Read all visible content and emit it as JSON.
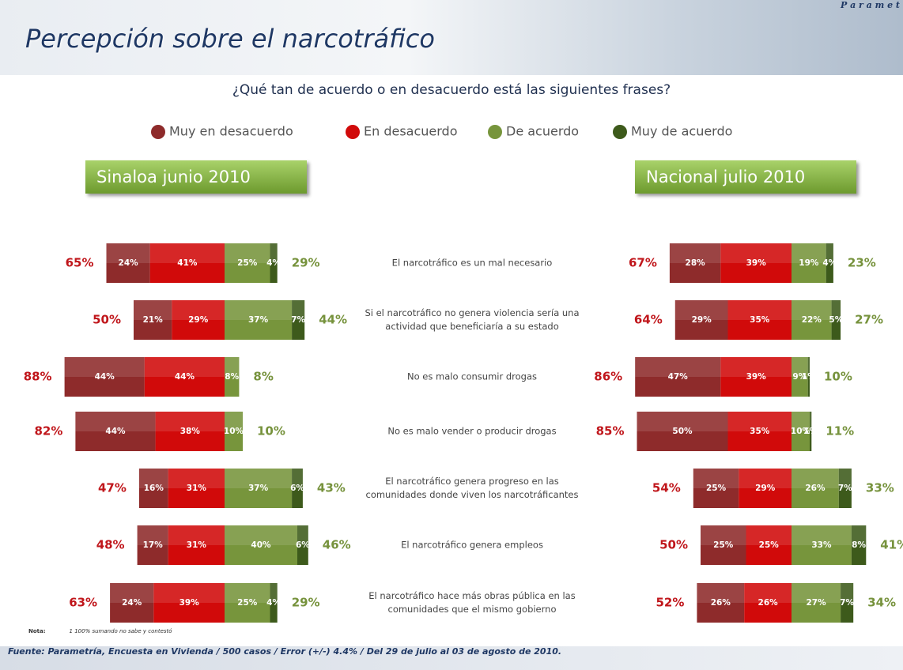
{
  "header": {
    "title": "Percepción sobre el narcotráfico",
    "logo": "P a r a m e t"
  },
  "question": "¿Qué tan de acuerdo o en desacuerdo está las siguientes frases?",
  "chart_data": [
    {
      "type": "bar",
      "title": "Sinaloa junio 2010",
      "categories": [
        "El narcotráfico es un mal necesario",
        "Si el narcotráfico no genera violencia sería una actividad que beneficiaría a su estado",
        "No es malo consumir drogas",
        "No es malo vender o producir drogas",
        "El narcotráfico genera progreso en las comunidades donde viven los narcotráficantes",
        "El narcotráfico genera empleos",
        "El narcotráfico hace más obras pública en las comunidades que el mismo gobierno"
      ],
      "series": [
        {
          "name": "Muy en desacuerdo",
          "color": "#8e2b2b",
          "values": [
            24,
            21,
            44,
            44,
            16,
            17,
            24
          ],
          "value_labels": [
            "24%",
            "21%",
            "44%",
            "44%",
            "16%",
            "17%",
            "24%"
          ]
        },
        {
          "name": "En desacuerdo",
          "color": "#d10a0a",
          "values": [
            41,
            29,
            44,
            38,
            31,
            31,
            39
          ],
          "value_labels": [
            "41%",
            "29%",
            "44%",
            "38%",
            "31%",
            "31%",
            "39%"
          ]
        },
        {
          "name": "De acuerdo",
          "color": "#77953c",
          "values": [
            25,
            37,
            8,
            10,
            37,
            40,
            25
          ],
          "value_labels": [
            "25%",
            "37%",
            "8%",
            "10%",
            "37%",
            "40%",
            "25%"
          ]
        },
        {
          "name": "Muy de acuerdo",
          "color": "#3d5a1b",
          "values": [
            4,
            7,
            0,
            0,
            6,
            6,
            4
          ],
          "value_labels": [
            "4%",
            "7%",
            null,
            null,
            "6%",
            "6%",
            "4%"
          ]
        }
      ],
      "disagree_totals": {
        "values": [
          65,
          50,
          88,
          82,
          47,
          48,
          63
        ],
        "value_labels": [
          "65%",
          "50%",
          "88%",
          "82%",
          "47%",
          "48%",
          "63%"
        ]
      },
      "agree_totals": {
        "values": [
          29,
          44,
          8,
          10,
          43,
          46,
          29
        ],
        "value_labels": [
          "29%",
          "44%",
          "8%",
          "10%",
          "43%",
          "46%",
          "29%"
        ]
      }
    },
    {
      "type": "bar",
      "title": "Nacional julio 2010",
      "series": [
        {
          "name": "Muy en desacuerdo",
          "color": "#8e2b2b",
          "values": [
            28,
            29,
            47,
            50,
            25,
            25,
            26
          ],
          "value_labels": [
            "28%",
            "29%",
            "47%",
            "50%",
            "25%",
            "25%",
            "26%"
          ]
        },
        {
          "name": "En desacuerdo",
          "color": "#d10a0a",
          "values": [
            39,
            35,
            39,
            35,
            29,
            25,
            26
          ],
          "value_labels": [
            "39%",
            "35%",
            "39%",
            "35%",
            "29%",
            "25%",
            "26%"
          ]
        },
        {
          "name": "De acuerdo",
          "color": "#77953c",
          "values": [
            19,
            22,
            9,
            10,
            26,
            33,
            27
          ],
          "value_labels": [
            "19%",
            "22%",
            "9%",
            "10%",
            "26%",
            "33%",
            "27%"
          ]
        },
        {
          "name": "Muy de acuerdo",
          "color": "#3d5a1b",
          "values": [
            4,
            5,
            1,
            1,
            7,
            8,
            7
          ],
          "value_labels": [
            "4%",
            "5%",
            "1%",
            "1%",
            "7%",
            "8%",
            "7%"
          ]
        }
      ],
      "disagree_totals": {
        "values": [
          67,
          64,
          86,
          85,
          54,
          50,
          52
        ],
        "value_labels": [
          "67%",
          "64%",
          "86%",
          "85%",
          "54%",
          "50%",
          "52%"
        ]
      },
      "agree_totals": {
        "values": [
          23,
          27,
          10,
          11,
          33,
          41,
          34
        ],
        "value_labels": [
          "23%",
          "27%",
          "10%",
          "11%",
          "33%",
          "41%",
          "34%"
        ]
      }
    }
  ],
  "note": {
    "label": "Nota:",
    "text": "1 100% sumando no sabe y contestó"
  },
  "footer": "Fuente: Parametría, Encuesta en Vivienda / 500 casos / Error (+/-) 4.4% / Del 29 de julio al 03 de agosto de 2010."
}
